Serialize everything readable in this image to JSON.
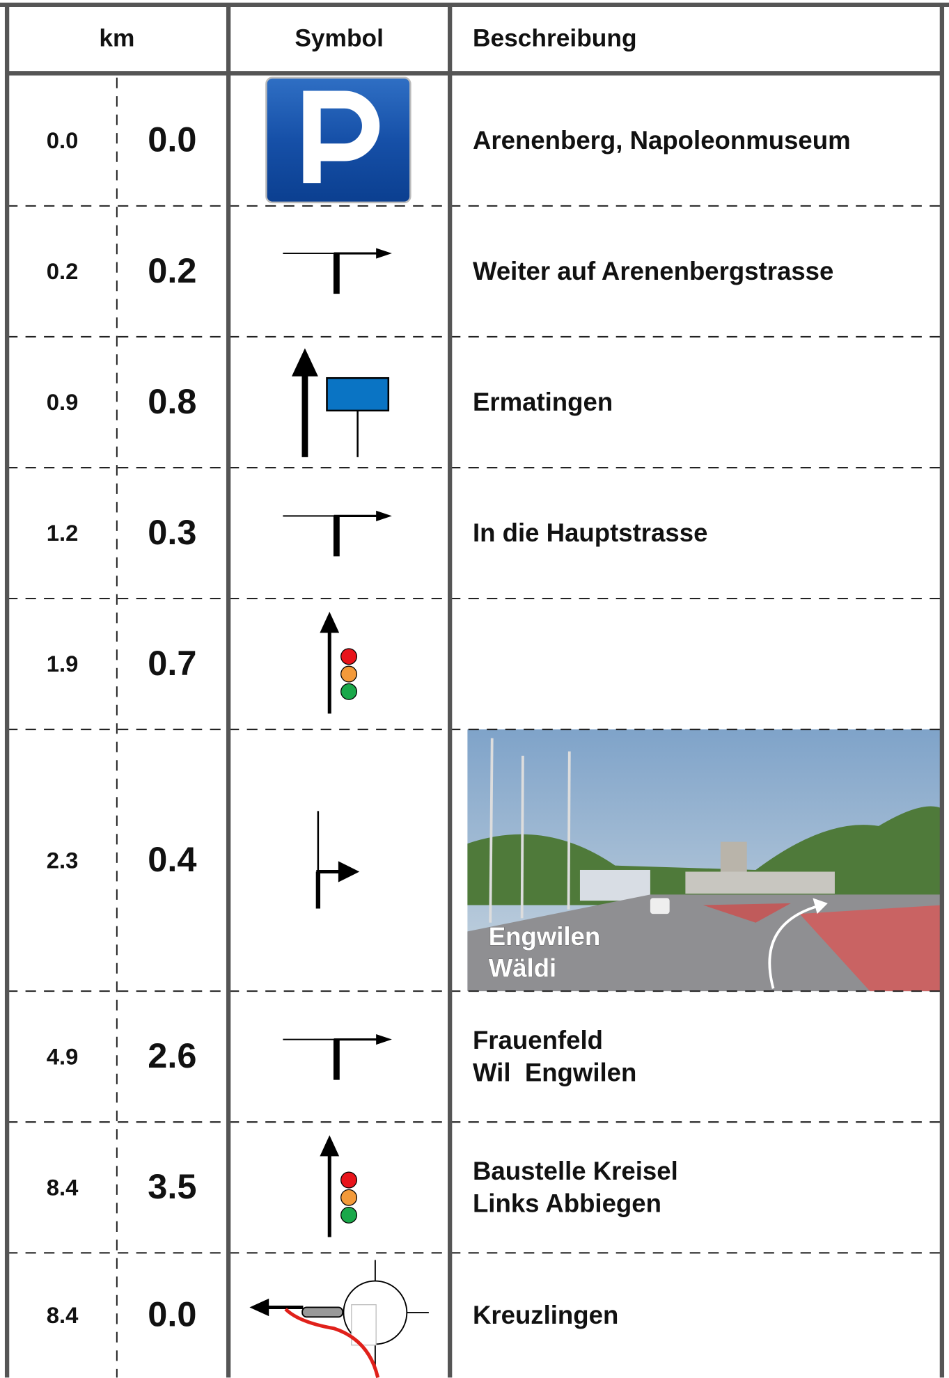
{
  "table": {
    "header": [
      "km",
      "Symbol",
      "Beschreibung"
    ],
    "rows": [
      {
        "total": "0.0",
        "partial": "0.0",
        "description": [
          "Arenenberg, Napoleonmuseum"
        ]
      },
      {
        "total": "0.2",
        "partial": "0.2",
        "description": [
          "Weiter auf Arenenbergstrasse"
        ]
      },
      {
        "total": "0.9",
        "partial": "0.8",
        "description": [
          "Ermatingen"
        ]
      },
      {
        "total": "1.2",
        "partial": "0.3",
        "description": [
          "In die Hauptstrasse"
        ]
      },
      {
        "total": "1.9",
        "partial": "0.7"
      },
      {
        "total": "2.3",
        "partial": "0.4",
        "photo_labels": [
          "Engwilen",
          "Wäldi"
        ]
      },
      {
        "total": "4.9",
        "partial": "2.6",
        "description": [
          "Frauenfeld",
          "Wil  Engwilen"
        ]
      },
      {
        "total": "8.4",
        "partial": "3.5",
        "description": [
          "Baustelle Kreisel",
          "Links Abbiegen"
        ]
      },
      {
        "total": "8.4",
        "partial": "0.0",
        "description": [
          "Kreuzlingen"
        ]
      }
    ]
  }
}
